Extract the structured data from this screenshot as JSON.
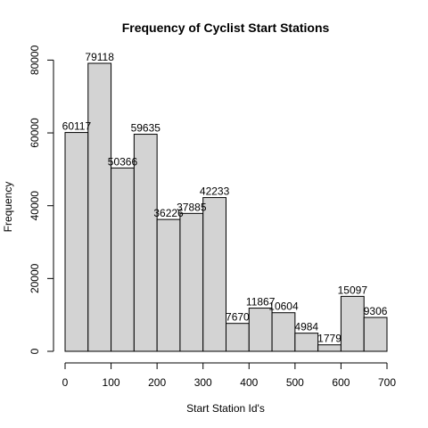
{
  "chart_data": {
    "type": "bar",
    "title": "Frequency of Cyclist Start Stations",
    "xlabel": "Start Station Id's",
    "ylabel": "Frequency",
    "bins": [
      {
        "start": 0,
        "end": 50,
        "value": 60117
      },
      {
        "start": 50,
        "end": 100,
        "value": 79118
      },
      {
        "start": 100,
        "end": 150,
        "value": 50366
      },
      {
        "start": 150,
        "end": 200,
        "value": 59635
      },
      {
        "start": 200,
        "end": 250,
        "value": 36226
      },
      {
        "start": 250,
        "end": 300,
        "value": 37885
      },
      {
        "start": 300,
        "end": 350,
        "value": 42233
      },
      {
        "start": 350,
        "end": 400,
        "value": 7670
      },
      {
        "start": 400,
        "end": 450,
        "value": 11867
      },
      {
        "start": 450,
        "end": 500,
        "value": 10604
      },
      {
        "start": 500,
        "end": 550,
        "value": 4984
      },
      {
        "start": 550,
        "end": 600,
        "value": 1779
      },
      {
        "start": 600,
        "end": 650,
        "value": 15097
      },
      {
        "start": 650,
        "end": 700,
        "value": 9306
      }
    ],
    "x_ticks": [
      0,
      100,
      200,
      300,
      400,
      500,
      600,
      700
    ],
    "y_ticks": [
      0,
      20000,
      40000,
      60000,
      80000
    ],
    "xlim": [
      0,
      700
    ],
    "ylim": [
      0,
      85000
    ],
    "grid": false,
    "bar_color": "#d3d3d3",
    "border_color": "#000000"
  }
}
